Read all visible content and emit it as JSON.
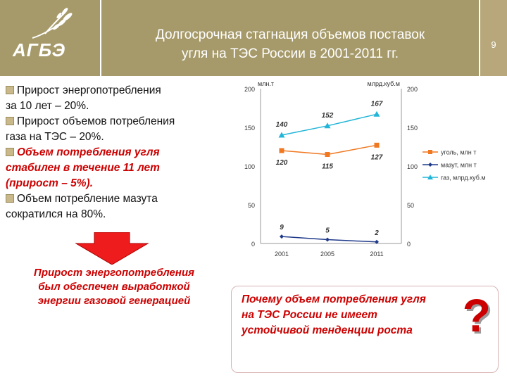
{
  "header": {
    "logo": "АГБЭ",
    "title_line1": "Долгосрочная стагнация объемов поставок",
    "title_line2": "угля на ТЭС России в 2001-2011 гг.",
    "page": "9",
    "colors": {
      "bar": "#a69a6a",
      "page_bar": "#b7a77a"
    }
  },
  "bullets": [
    {
      "lines": [
        "Прирост энергопотребления",
        "за 10 лет – 20%."
      ],
      "style": "normal"
    },
    {
      "lines": [
        "Прирост объемов потребления",
        "газа на ТЭС – 20%."
      ],
      "style": "normal"
    },
    {
      "lines": [
        "Объем потребления угля",
        "стабилен в течение 11 лет",
        "(прирост – 5%)."
      ],
      "style": "red"
    },
    {
      "lines": [
        "Объем потребление мазута",
        "сократился на 80%."
      ],
      "style": "normal"
    }
  ],
  "conclusion": [
    "Прирост энергопотребления",
    "был обеспечен выработкой",
    "энергии газовой генерацией"
  ],
  "question": {
    "lines": [
      "Почему объем потребления угля",
      "на ТЭС России не имеет",
      "устойчивой тенденции роста"
    ],
    "mark": "?"
  },
  "chart_data": {
    "type": "line",
    "x": [
      "2001",
      "2005",
      "2011"
    ],
    "ylim": [
      0,
      200
    ],
    "yticks": [
      "0",
      "50",
      "100",
      "150",
      "200"
    ],
    "ylabel_left": "млн.т",
    "ylabel_right": "млрд.куб.м",
    "grid": false,
    "legend_position": "right",
    "series": [
      {
        "name": "уголь, млн т",
        "values": [
          120,
          115,
          127
        ],
        "color": "#f07820",
        "marker": "square"
      },
      {
        "name": "мазут, млн т",
        "values": [
          9,
          5,
          2
        ],
        "color": "#1f3a8a",
        "marker": "diamond"
      },
      {
        "name": "газ, млрд.куб.м",
        "values": [
          140,
          152,
          167
        ],
        "color": "#22b5d8",
        "marker": "triangle"
      }
    ]
  }
}
